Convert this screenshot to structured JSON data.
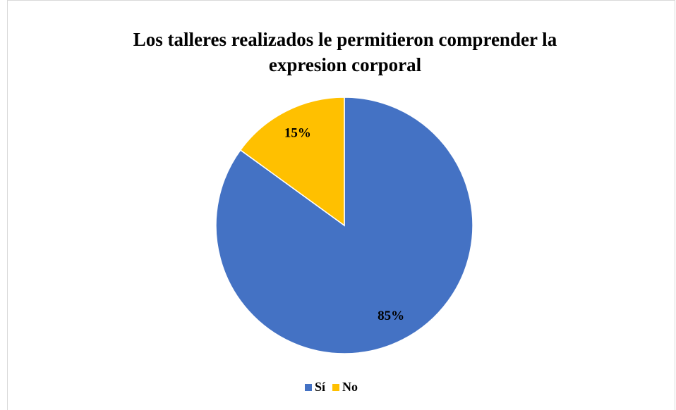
{
  "chart_data": {
    "type": "pie",
    "title": "Los talleres realizados le permitieron comprender la expresion corporal",
    "categories": [
      "Sí",
      "No"
    ],
    "values": [
      85,
      15
    ],
    "value_labels": [
      "85%",
      "15%"
    ],
    "colors": [
      "#4472c4",
      "#ffc000"
    ],
    "legend": "bottom"
  }
}
